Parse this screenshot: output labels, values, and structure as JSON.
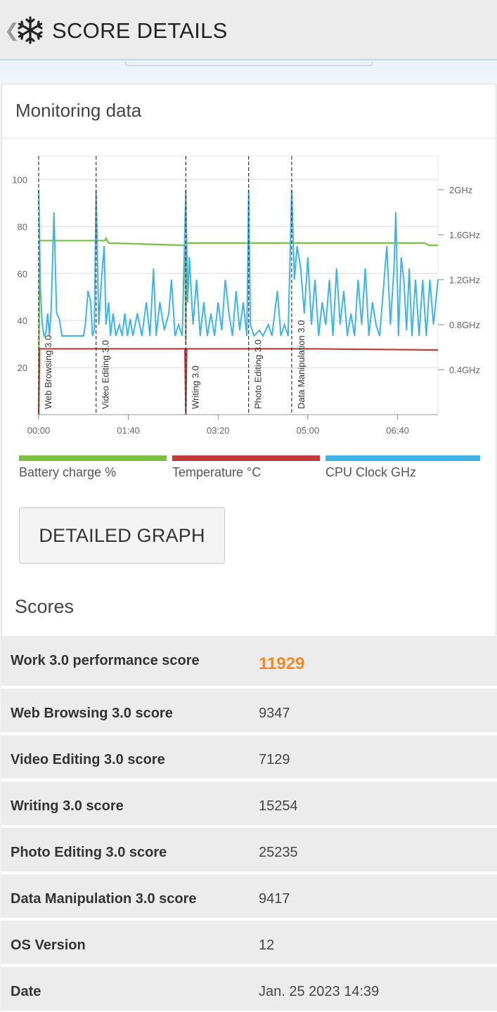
{
  "header": {
    "back_icon": "chevron-left-icon",
    "logo_icon": "snowflake-icon",
    "title": "SCORE DETAILS"
  },
  "monitoring": {
    "title": "Monitoring data"
  },
  "chart_data": {
    "type": "line",
    "x_ticks": [
      "00:00",
      "01:40",
      "03:20",
      "05:00",
      "06:40"
    ],
    "left_axis": {
      "ticks": [
        20,
        40,
        60,
        80,
        100
      ],
      "range": [
        0,
        110
      ]
    },
    "right_axis": {
      "ticks": [
        "0.4GHz",
        "0.8GHz",
        "1.2GHz",
        "1.6GHz",
        "2GHz"
      ],
      "range_ghz": [
        0,
        2.3
      ]
    },
    "x_range_seconds": [
      0,
      445
    ],
    "markers": [
      {
        "label": "Web Browsing 3.0",
        "t": 0
      },
      {
        "label": "Video Editing 3.0",
        "t": 64
      },
      {
        "label": "Writing 3.0",
        "t": 164
      },
      {
        "label": "Photo Editing 3.0",
        "t": 234
      },
      {
        "label": "Data Manipulation 3.0",
        "t": 282
      }
    ],
    "series": [
      {
        "name": "Battery charge %",
        "color": "#7ac142",
        "points": [
          [
            0,
            0
          ],
          [
            1,
            74
          ],
          [
            74,
            74
          ],
          [
            75,
            75
          ],
          [
            78,
            73
          ],
          [
            163,
            72
          ],
          [
            164,
            30
          ],
          [
            165,
            73
          ],
          [
            240,
            73
          ],
          [
            360,
            73
          ],
          [
            430,
            73
          ],
          [
            435,
            72
          ],
          [
            445,
            72
          ]
        ]
      },
      {
        "name": "Temperature °C",
        "color": "#c23b3b",
        "points": [
          [
            0,
            0
          ],
          [
            1,
            28
          ],
          [
            163,
            28
          ],
          [
            164,
            0
          ],
          [
            165,
            28
          ],
          [
            300,
            28
          ],
          [
            445,
            27.5
          ]
        ]
      },
      {
        "name": "CPU Clock GHz",
        "color": "#3fb4e5",
        "points": [
          [
            0,
            2.0
          ],
          [
            2,
            1.1
          ],
          [
            4,
            0.8
          ],
          [
            6,
            0.7
          ],
          [
            8,
            0.72
          ],
          [
            10,
            0.9
          ],
          [
            12,
            0.7
          ],
          [
            14,
            0.95
          ],
          [
            17,
            1.8
          ],
          [
            20,
            0.9
          ],
          [
            23,
            0.85
          ],
          [
            26,
            0.7
          ],
          [
            30,
            0.7
          ],
          [
            40,
            0.7
          ],
          [
            50,
            0.7
          ],
          [
            52,
            0.8
          ],
          [
            55,
            1.1
          ],
          [
            58,
            1.0
          ],
          [
            60,
            0.7
          ],
          [
            62,
            0.75
          ],
          [
            64,
            2.0
          ],
          [
            67,
            0.8
          ],
          [
            70,
            1.2
          ],
          [
            73,
            1.5
          ],
          [
            75,
            0.8
          ],
          [
            78,
            1.0
          ],
          [
            80,
            0.7
          ],
          [
            83,
            0.9
          ],
          [
            86,
            0.7
          ],
          [
            90,
            0.8
          ],
          [
            93,
            0.7
          ],
          [
            96,
            0.9
          ],
          [
            99,
            0.7
          ],
          [
            102,
            0.85
          ],
          [
            105,
            0.7
          ],
          [
            110,
            0.9
          ],
          [
            115,
            0.7
          ],
          [
            120,
            1.0
          ],
          [
            124,
            0.7
          ],
          [
            128,
            1.3
          ],
          [
            131,
            0.7
          ],
          [
            135,
            1.0
          ],
          [
            140,
            0.75
          ],
          [
            145,
            0.9
          ],
          [
            148,
            1.2
          ],
          [
            152,
            0.7
          ],
          [
            156,
            0.8
          ],
          [
            160,
            0.7
          ],
          [
            164,
            2.0
          ],
          [
            166,
            1.0
          ],
          [
            168,
            1.4
          ],
          [
            172,
            0.8
          ],
          [
            176,
            1.2
          ],
          [
            180,
            0.7
          ],
          [
            184,
            1.0
          ],
          [
            188,
            0.7
          ],
          [
            192,
            0.9
          ],
          [
            196,
            0.7
          ],
          [
            200,
            1.0
          ],
          [
            204,
            0.75
          ],
          [
            208,
            1.2
          ],
          [
            212,
            0.9
          ],
          [
            216,
            0.7
          ],
          [
            220,
            1.1
          ],
          [
            224,
            0.75
          ],
          [
            228,
            1.0
          ],
          [
            232,
            0.7
          ],
          [
            234,
            2.0
          ],
          [
            236,
            0.8
          ],
          [
            240,
            0.7
          ],
          [
            246,
            0.75
          ],
          [
            250,
            0.7
          ],
          [
            256,
            0.8
          ],
          [
            260,
            0.7
          ],
          [
            266,
            1.1
          ],
          [
            270,
            0.7
          ],
          [
            274,
            0.8
          ],
          [
            278,
            0.7
          ],
          [
            282,
            2.0
          ],
          [
            285,
            1.2
          ],
          [
            288,
            1.5
          ],
          [
            292,
            1.3
          ],
          [
            296,
            0.9
          ],
          [
            300,
            1.4
          ],
          [
            304,
            0.8
          ],
          [
            308,
            1.2
          ],
          [
            312,
            0.7
          ],
          [
            316,
            1.0
          ],
          [
            320,
            0.8
          ],
          [
            324,
            1.2
          ],
          [
            328,
            0.7
          ],
          [
            332,
            1.3
          ],
          [
            336,
            0.8
          ],
          [
            340,
            1.1
          ],
          [
            344,
            0.7
          ],
          [
            348,
            0.9
          ],
          [
            352,
            0.7
          ],
          [
            356,
            1.2
          ],
          [
            360,
            0.8
          ],
          [
            364,
            1.3
          ],
          [
            368,
            0.7
          ],
          [
            372,
            1.0
          ],
          [
            376,
            0.8
          ],
          [
            380,
            0.7
          ],
          [
            384,
            1.1
          ],
          [
            388,
            1.5
          ],
          [
            392,
            0.8
          ],
          [
            396,
            1.3
          ],
          [
            398,
            1.8
          ],
          [
            401,
            0.7
          ],
          [
            404,
            1.4
          ],
          [
            407,
            1.2
          ],
          [
            410,
            0.75
          ],
          [
            413,
            1.3
          ],
          [
            416,
            0.7
          ],
          [
            420,
            1.2
          ],
          [
            424,
            0.7
          ],
          [
            428,
            1.2
          ],
          [
            432,
            0.7
          ],
          [
            436,
            1.2
          ],
          [
            440,
            0.8
          ],
          [
            445,
            1.2
          ]
        ]
      }
    ]
  },
  "legend": [
    {
      "label": "Battery charge %",
      "color": "#7ac142"
    },
    {
      "label": "Temperature °C",
      "color": "#c23b3b"
    },
    {
      "label": "CPU Clock GHz",
      "color": "#3fb4e5"
    }
  ],
  "detailed_graph_label": "DETAILED GRAPH",
  "scores": {
    "title": "Scores",
    "rows": [
      {
        "label": "Work 3.0 performance score",
        "value": "11929"
      },
      {
        "label": "Web Browsing 3.0 score",
        "value": "9347"
      },
      {
        "label": "Video Editing 3.0 score",
        "value": "7129"
      },
      {
        "label": "Writing 3.0 score",
        "value": "15254"
      },
      {
        "label": "Photo Editing 3.0 score",
        "value": "25235"
      },
      {
        "label": "Data Manipulation 3.0 score",
        "value": "9417"
      },
      {
        "label": "OS Version",
        "value": "12"
      },
      {
        "label": "Date",
        "value": "Jan. 25 2023 14:39"
      }
    ]
  }
}
